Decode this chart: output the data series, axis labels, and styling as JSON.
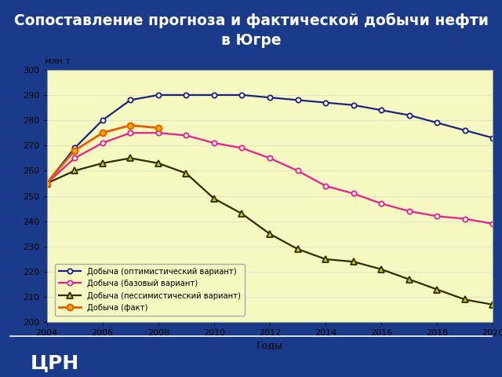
{
  "title": "Сопоставление прогноза и фактической добычи нефти\nв Югре",
  "title_color": "#ffffff",
  "title_bg_color": "#0d1f5c",
  "xlabel": "Годы",
  "ylabel": "млн.т",
  "plot_bg_color": "#f5f8c0",
  "outer_bg_color": "#1a3a8a",
  "chart_frame_color": "#ffffff",
  "xlim": [
    2004,
    2020
  ],
  "ylim": [
    200,
    300
  ],
  "yticks": [
    200,
    210,
    220,
    230,
    240,
    250,
    260,
    270,
    280,
    290,
    300
  ],
  "xticks": [
    2004,
    2006,
    2008,
    2010,
    2012,
    2014,
    2016,
    2018,
    2020
  ],
  "years_optimistic": [
    2004,
    2005,
    2006,
    2007,
    2008,
    2009,
    2010,
    2011,
    2012,
    2013,
    2014,
    2015,
    2016,
    2017,
    2018,
    2019,
    2020
  ],
  "optimistic": [
    255,
    269,
    280,
    288,
    290,
    290,
    290,
    290,
    289,
    288,
    287,
    286,
    284,
    282,
    279,
    276,
    273
  ],
  "years_base": [
    2004,
    2005,
    2006,
    2007,
    2008,
    2009,
    2010,
    2011,
    2012,
    2013,
    2014,
    2015,
    2016,
    2017,
    2018,
    2019,
    2020
  ],
  "base": [
    255,
    265,
    271,
    275,
    275,
    274,
    271,
    269,
    265,
    260,
    254,
    251,
    247,
    244,
    242,
    241,
    239
  ],
  "years_pessimistic": [
    2004,
    2005,
    2006,
    2007,
    2008,
    2009,
    2010,
    2011,
    2012,
    2013,
    2014,
    2015,
    2016,
    2017,
    2018,
    2019,
    2020
  ],
  "pessimistic": [
    255,
    260,
    263,
    265,
    263,
    259,
    249,
    243,
    235,
    229,
    225,
    224,
    221,
    217,
    213,
    209,
    207
  ],
  "years_fact": [
    2004,
    2005,
    2006,
    2007,
    2008
  ],
  "fact": [
    255,
    268,
    275,
    278,
    277
  ],
  "color_optimistic": "#1a237e",
  "color_base": "#e91e8c",
  "color_pessimistic": "#2d2d00",
  "color_fact": "#e65c00",
  "marker_face_opt": "#ffffff",
  "marker_face_base": "#ffffff",
  "marker_face_pess": "#cccc00",
  "marker_face_fact": "#ffaa00",
  "label_optimistic": "Добыча (оптимистический вариант)",
  "label_base": "Добыча (базовый вариант)",
  "label_pessimistic": "Добыча (пессимистический вариант)",
  "label_fact": "Добыча (факт)",
  "logo_text": "ЦРН"
}
